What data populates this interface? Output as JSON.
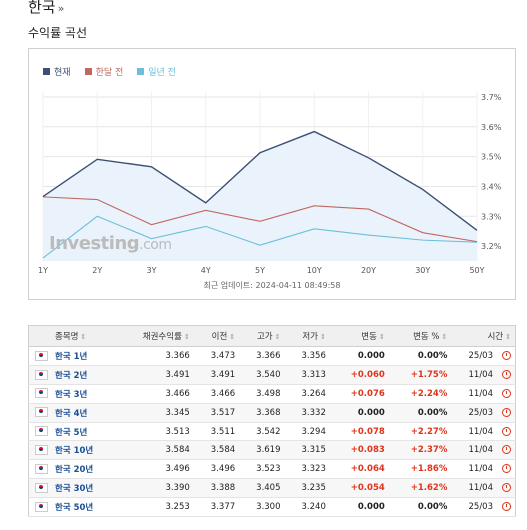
{
  "header": {
    "title": "한국",
    "title_arrow": "»",
    "subtitle": "수익률 곡선"
  },
  "legend": [
    {
      "label": "현재",
      "color": "#3d4f73"
    },
    {
      "label": "한달 전",
      "color": "#c1675f"
    },
    {
      "label": "일년 전",
      "color": "#6bbfd8"
    }
  ],
  "watermark": {
    "brand": "Investing",
    "suffix": ".com"
  },
  "update_label": "최근 업데이트: 2024-04-11 08:49:58",
  "chart_data": {
    "type": "line",
    "x": [
      "1Y",
      "2Y",
      "3Y",
      "4Y",
      "5Y",
      "10Y",
      "20Y",
      "30Y",
      "50Y"
    ],
    "y_ticks": [
      "3.2%",
      "3.3%",
      "3.4%",
      "3.5%",
      "3.6%",
      "3.7%"
    ],
    "ylim": [
      3.15,
      3.72
    ],
    "series": [
      {
        "name": "현재",
        "color": "#3d4f73",
        "values": [
          3.366,
          3.491,
          3.466,
          3.345,
          3.513,
          3.584,
          3.496,
          3.39,
          3.253
        ]
      },
      {
        "name": "한달 전",
        "color": "#c1675f",
        "values": [
          3.365,
          3.356,
          3.272,
          3.32,
          3.283,
          3.335,
          3.324,
          3.245,
          3.215
        ]
      },
      {
        "name": "일년 전",
        "color": "#6bbfd8",
        "values": [
          3.16,
          3.3,
          3.225,
          3.266,
          3.203,
          3.258,
          3.237,
          3.22,
          3.213
        ]
      }
    ]
  },
  "table": {
    "headers": [
      "종목명",
      "채권수익률",
      "이전",
      "고가",
      "저가",
      "변동",
      "변동 %",
      "시간"
    ],
    "sort_glyph": "⇕",
    "rows": [
      {
        "name": "한국 1년",
        "yield": "3.366",
        "prev": "3.473",
        "high": "3.366",
        "low": "3.356",
        "chg": "0.000",
        "chg_pct": "0.00%",
        "time": "25/03",
        "dir": "zero"
      },
      {
        "name": "한국 2년",
        "yield": "3.491",
        "prev": "3.491",
        "high": "3.540",
        "low": "3.313",
        "chg": "+0.060",
        "chg_pct": "+1.75%",
        "time": "11/04",
        "dir": "pos"
      },
      {
        "name": "한국 3년",
        "yield": "3.466",
        "prev": "3.466",
        "high": "3.498",
        "low": "3.264",
        "chg": "+0.076",
        "chg_pct": "+2.24%",
        "time": "11/04",
        "dir": "pos"
      },
      {
        "name": "한국 4년",
        "yield": "3.345",
        "prev": "3.517",
        "high": "3.368",
        "low": "3.332",
        "chg": "0.000",
        "chg_pct": "0.00%",
        "time": "25/03",
        "dir": "zero"
      },
      {
        "name": "한국 5년",
        "yield": "3.513",
        "prev": "3.511",
        "high": "3.542",
        "low": "3.294",
        "chg": "+0.078",
        "chg_pct": "+2.27%",
        "time": "11/04",
        "dir": "pos"
      },
      {
        "name": "한국 10년",
        "yield": "3.584",
        "prev": "3.584",
        "high": "3.619",
        "low": "3.315",
        "chg": "+0.083",
        "chg_pct": "+2.37%",
        "time": "11/04",
        "dir": "pos"
      },
      {
        "name": "한국 20년",
        "yield": "3.496",
        "prev": "3.496",
        "high": "3.523",
        "low": "3.323",
        "chg": "+0.064",
        "chg_pct": "+1.86%",
        "time": "11/04",
        "dir": "pos"
      },
      {
        "name": "한국 30년",
        "yield": "3.390",
        "prev": "3.388",
        "high": "3.405",
        "low": "3.235",
        "chg": "+0.054",
        "chg_pct": "+1.62%",
        "time": "11/04",
        "dir": "pos"
      },
      {
        "name": "한국 50년",
        "yield": "3.253",
        "prev": "3.377",
        "high": "3.300",
        "low": "3.240",
        "chg": "0.000",
        "chg_pct": "0.00%",
        "time": "25/03",
        "dir": "zero"
      }
    ]
  }
}
